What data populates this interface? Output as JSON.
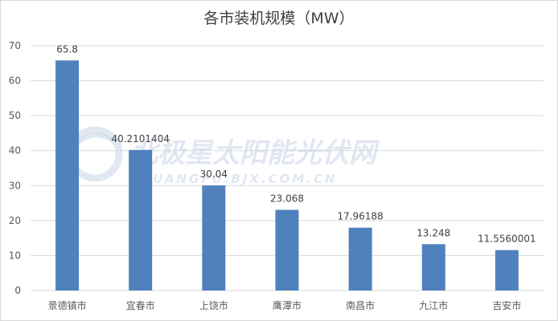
{
  "chart_data": {
    "type": "bar",
    "title": "各市装机规模（MW）",
    "categories": [
      "景德镇市",
      "宜春市",
      "上饶市",
      "鹰潭市",
      "南昌市",
      "九江市",
      "吉安市"
    ],
    "values": [
      65.8,
      40.2101404,
      30.04,
      23.068,
      17.96188,
      13.248,
      11.5560001
    ],
    "data_labels": [
      "65.8",
      "40.2101404",
      "30.04",
      "23.068",
      "17.96188",
      "13.248",
      "11.5560001"
    ],
    "ylim": [
      0,
      70
    ],
    "yticks": [
      0,
      10,
      20,
      30,
      40,
      50,
      60,
      70
    ],
    "xlabel": "",
    "ylabel": "",
    "grid": true,
    "bar_color": "#4f81bd",
    "grid_color": "#d9d9d9"
  },
  "watermark": {
    "text": "北极星太阳能光伏网",
    "subtext": "GUANGFU.BJX.COM.CN"
  }
}
